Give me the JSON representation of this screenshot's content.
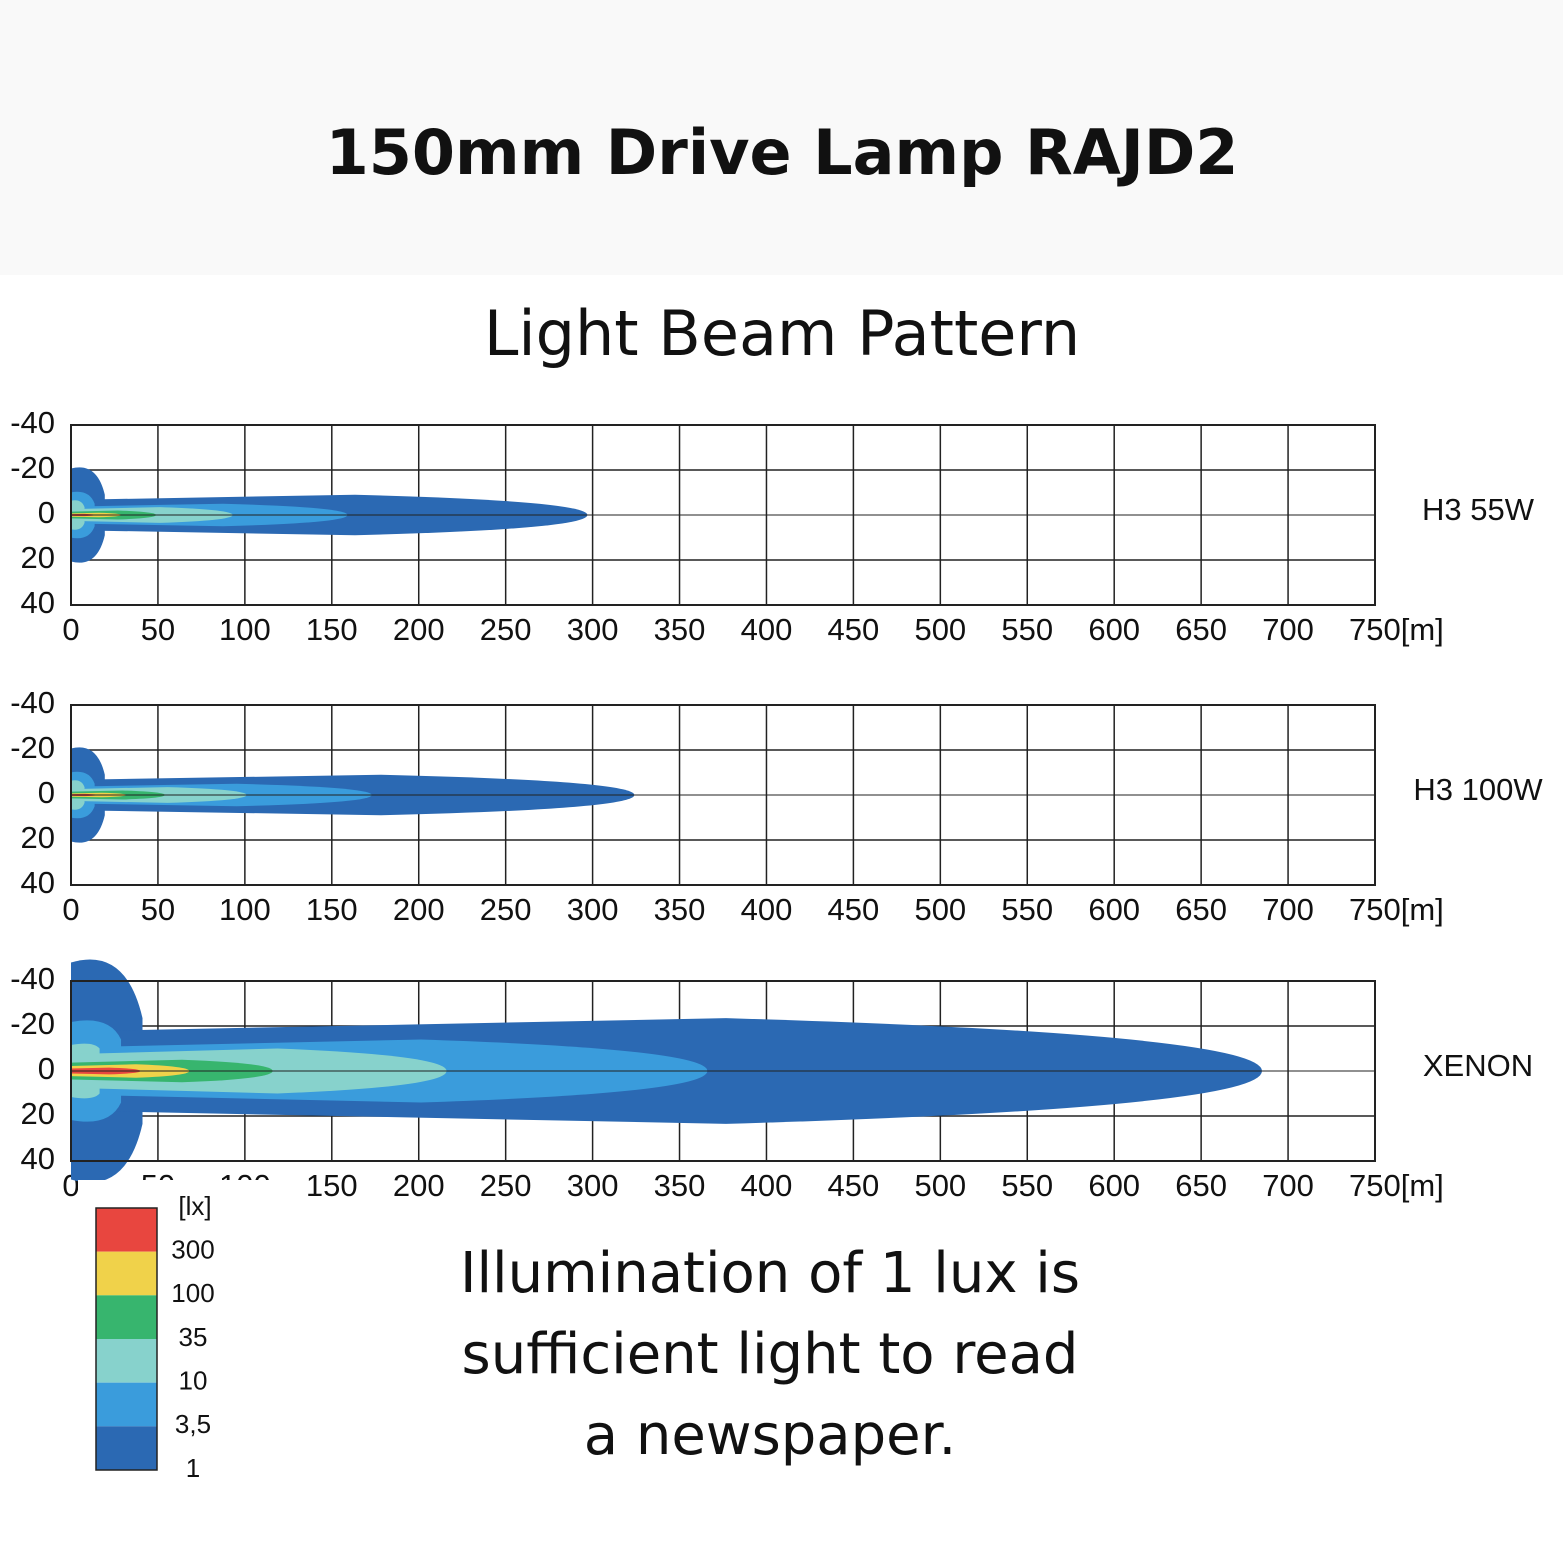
{
  "header": {
    "title": "150mm Drive Lamp RAJD2",
    "subtitle": "Light Beam Pattern"
  },
  "axes": {
    "ylim": [
      -40,
      40
    ],
    "yticks": [
      -40,
      -20,
      0,
      20,
      40
    ],
    "xlim": [
      0,
      750
    ],
    "xticks": [
      0,
      50,
      100,
      150,
      200,
      250,
      300,
      350,
      400,
      450,
      500,
      550,
      600,
      650,
      700,
      {
        "value": 750,
        "label": "750[m]"
      }
    ]
  },
  "plots": [
    {
      "label": "H3 55W",
      "contours": [
        {
          "reach": 297,
          "half_width": 9
        },
        {
          "reach": 159,
          "half_width": 5
        },
        {
          "reach": 93,
          "half_width": 3.5
        },
        {
          "reach": 49,
          "half_width": 2
        },
        {
          "reach": 29,
          "half_width": 1
        },
        {
          "reach": 14,
          "half_width": 0.5
        }
      ]
    },
    {
      "label": "H3 100W",
      "contours": [
        {
          "reach": 324,
          "half_width": 9
        },
        {
          "reach": 173,
          "half_width": 5
        },
        {
          "reach": 101,
          "half_width": 3.5
        },
        {
          "reach": 54,
          "half_width": 2
        },
        {
          "reach": 32,
          "half_width": 1
        },
        {
          "reach": 15,
          "half_width": 0.5
        }
      ]
    },
    {
      "label": "XENON",
      "contours": [
        {
          "reach": 685,
          "half_width": 23.5
        },
        {
          "reach": 366,
          "half_width": 14
        },
        {
          "reach": 216,
          "half_width": 10
        },
        {
          "reach": 116,
          "half_width": 5
        },
        {
          "reach": 68,
          "half_width": 3
        },
        {
          "reach": 40,
          "half_width": 1.5
        }
      ]
    }
  ],
  "legend": {
    "unit": "[lx]",
    "levels": [
      {
        "lux": 300,
        "color": "#e8463f"
      },
      {
        "lux": 100,
        "color": "#f0d24a"
      },
      {
        "lux": 35,
        "color": "#37b56e"
      },
      {
        "lux": 10,
        "color": "#87d2cc"
      },
      {
        "lux": 3.5,
        "label": "3,5",
        "color": "#3a9cdc"
      },
      {
        "lux": 1,
        "color": "#2b69b3"
      }
    ]
  },
  "note": {
    "lines": [
      "Illumination of 1 lux is",
      "sufficient light to read",
      "a newspaper."
    ]
  }
}
